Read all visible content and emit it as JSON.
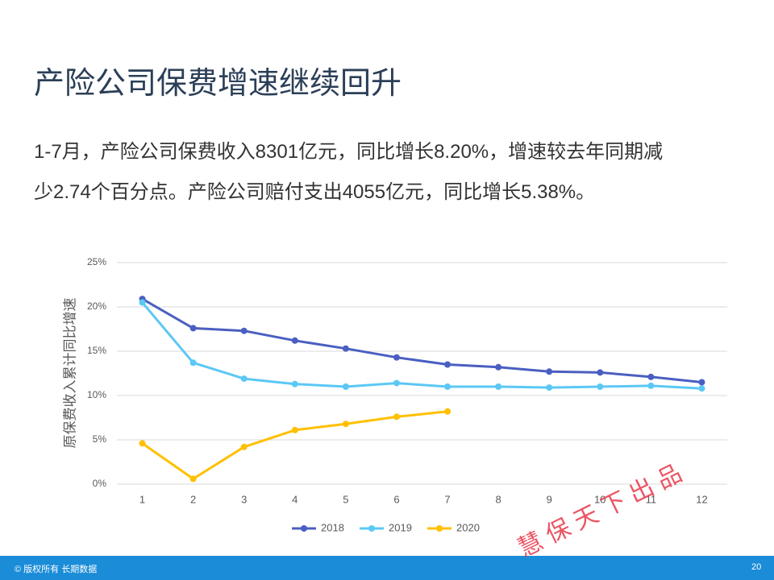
{
  "slide": {
    "title": "产险公司保费增速继续回升",
    "paragraph": [
      "1-7月，产险公司保费收入8301亿元，同比增长8.20%，增速较去年同期减",
      "少2.74个百分点。产险公司赔付支出4055亿元，同比增长5.38%。"
    ],
    "watermark": "慧 保 天 下 出 品",
    "footer": "© 版权所有 长期数据",
    "page_number": "20"
  },
  "chart_data": {
    "type": "line",
    "ylabel": "原保费收入累计同比增速",
    "categories": [
      "1",
      "2",
      "3",
      "4",
      "5",
      "6",
      "7",
      "8",
      "9",
      "10",
      "11",
      "12"
    ],
    "series": [
      {
        "name": "2018",
        "color": "#4a5fc1",
        "values": [
          20.9,
          17.6,
          17.3,
          16.2,
          15.3,
          14.3,
          13.5,
          13.2,
          12.7,
          12.6,
          12.1,
          11.5
        ]
      },
      {
        "name": "2019",
        "color": "#5bc8f5",
        "values": [
          20.5,
          13.7,
          11.9,
          11.3,
          11.0,
          11.4,
          11.0,
          11.0,
          10.9,
          11.0,
          11.1,
          10.8
        ]
      },
      {
        "name": "2020",
        "color": "#ffc000",
        "values": [
          4.6,
          0.6,
          4.2,
          6.1,
          6.8,
          7.6,
          8.2,
          null,
          null,
          null,
          null,
          null
        ]
      }
    ],
    "ylim": [
      0,
      25
    ],
    "yticks": [
      {
        "value": 0,
        "label": "0%"
      },
      {
        "value": 5,
        "label": "5%"
      },
      {
        "value": 10,
        "label": "10%"
      },
      {
        "value": 15,
        "label": "15%"
      },
      {
        "value": 20,
        "label": "20%"
      },
      {
        "value": 25,
        "label": "25%"
      }
    ],
    "grid": true,
    "legend": "bottom"
  }
}
